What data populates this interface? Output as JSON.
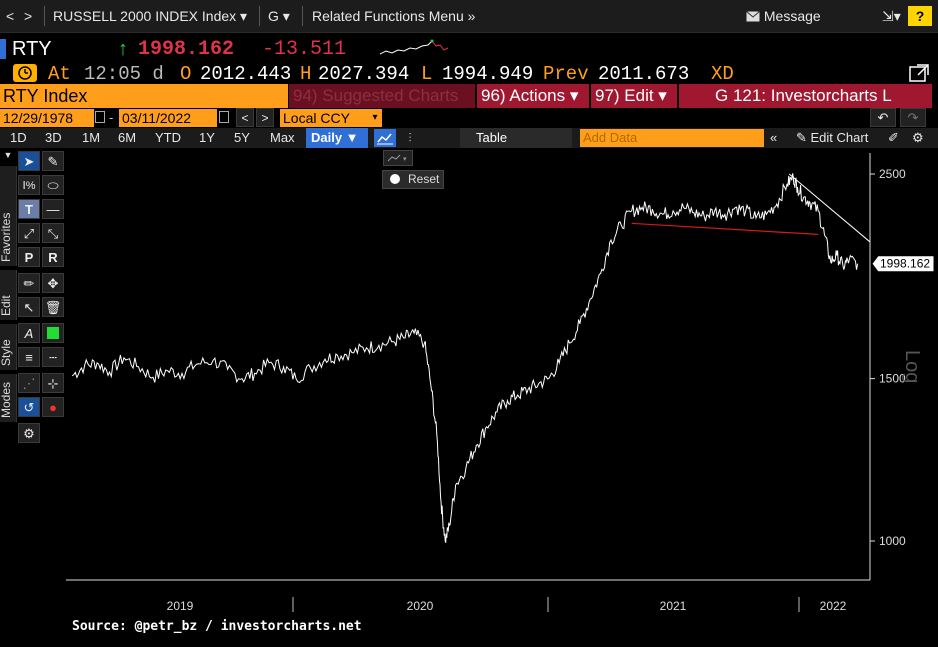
{
  "topbar": {
    "title": "RUSSELL 2000 INDEX Index",
    "g_menu": "G",
    "related": "Related Functions Menu",
    "message": "Message",
    "help": "?"
  },
  "quote": {
    "ticker": "RTY",
    "arrow": "↑",
    "last": "1998.162",
    "change": "-13.511"
  },
  "ohlc": {
    "at_label": "At",
    "time": "12:05 d",
    "open_label": "O",
    "open": "2012.443",
    "high_label": "H",
    "high": "2027.394",
    "low_label": "L",
    "low": "1994.949",
    "prev_label": "Prev",
    "prev": "2011.673",
    "xd": "XD"
  },
  "security_bar": {
    "security": "RTY Index",
    "suggested": "94) Suggested Charts",
    "actions": "96) Actions ▾",
    "edit": "97) Edit ▾",
    "chart_name": "G 121: Investorcharts L"
  },
  "date_row": {
    "start_date": "12/29/1978",
    "end_date": "03/11/2022",
    "currency": "Local CCY"
  },
  "periods": [
    "1D",
    "3D",
    "1M",
    "6M",
    "YTD",
    "1Y",
    "5Y",
    "Max"
  ],
  "period_row": {
    "frequency": "Daily ▼",
    "table": "Table",
    "add_data_placeholder": "Add Data",
    "edit_chart": "Edit Chart"
  },
  "side_tabs": [
    "Favorites",
    "Edit",
    "Style",
    "Modes"
  ],
  "toolbar": {
    "reset": "Reset"
  },
  "colors": {
    "accent_orange": "#ff9e1b",
    "price_red": "#e0334a",
    "up_green": "#2bd14a",
    "trend_red": "#d11a1a"
  },
  "chart_data": {
    "type": "line",
    "scale": "log",
    "axis_label": "Log",
    "last_value_label": "1998.162",
    "source": "Source: @petr_bz / investorcharts.net",
    "y_ticks": [
      2500,
      1500,
      1000
    ],
    "ylim": [
      900,
      2650
    ],
    "x_ticks": [
      "2019",
      "2020",
      "2021",
      "2022"
    ],
    "xlim": [
      2018.37,
      2022.25
    ],
    "series": [
      {
        "x": [
          2018.4,
          2018.46,
          2018.52,
          2018.58,
          2018.65,
          2018.72,
          2018.79,
          2018.86,
          2018.93,
          2019.0,
          2019.08,
          2019.15,
          2019.22,
          2019.28,
          2019.35,
          2019.42,
          2019.48,
          2019.55,
          2019.62,
          2019.68,
          2019.75,
          2019.82,
          2019.88,
          2019.95,
          2020.0,
          2020.05,
          2020.1,
          2020.13,
          2020.16,
          2020.18,
          2020.2,
          2020.22,
          2020.25,
          2020.3,
          2020.35,
          2020.4,
          2020.45,
          2020.5,
          2020.55,
          2020.6,
          2020.65,
          2020.7,
          2020.75,
          2020.8,
          2020.85,
          2020.9,
          2020.95,
          2021.0,
          2021.05,
          2021.1,
          2021.15,
          2021.2,
          2021.25,
          2021.3,
          2021.35,
          2021.4,
          2021.45,
          2021.5,
          2021.55,
          2021.6,
          2021.65,
          2021.7,
          2021.75,
          2021.8,
          2021.85,
          2021.88,
          2021.9,
          2021.93,
          2021.96,
          2022.0,
          2022.03,
          2022.06,
          2022.09,
          2022.12,
          2022.15,
          2022.19
        ],
        "values": [
          1510,
          1550,
          1560,
          1525,
          1580,
          1545,
          1505,
          1530,
          1520,
          1555,
          1570,
          1535,
          1500,
          1520,
          1560,
          1545,
          1500,
          1540,
          1575,
          1590,
          1600,
          1620,
          1630,
          1645,
          1660,
          1680,
          1640,
          1480,
          1300,
          1100,
          1000,
          1040,
          1150,
          1200,
          1270,
          1330,
          1380,
          1420,
          1440,
          1460,
          1480,
          1500,
          1560,
          1640,
          1720,
          1830,
          1950,
          2120,
          2200,
          2280,
          2300,
          2290,
          2260,
          2280,
          2300,
          2270,
          2250,
          2280,
          2260,
          2300,
          2280,
          2240,
          2260,
          2320,
          2440,
          2480,
          2420,
          2360,
          2330,
          2280,
          2150,
          2010,
          2040,
          1985,
          2020,
          1998.162
        ]
      }
    ],
    "trendlines": [
      {
        "name": "neckline",
        "x": [
          2021.1,
          2022.0
        ],
        "values": [
          2210,
          2150
        ]
      },
      {
        "name": "downtrend",
        "x": [
          2021.86,
          2022.25
        ],
        "values": [
          2500,
          2110
        ]
      }
    ]
  }
}
